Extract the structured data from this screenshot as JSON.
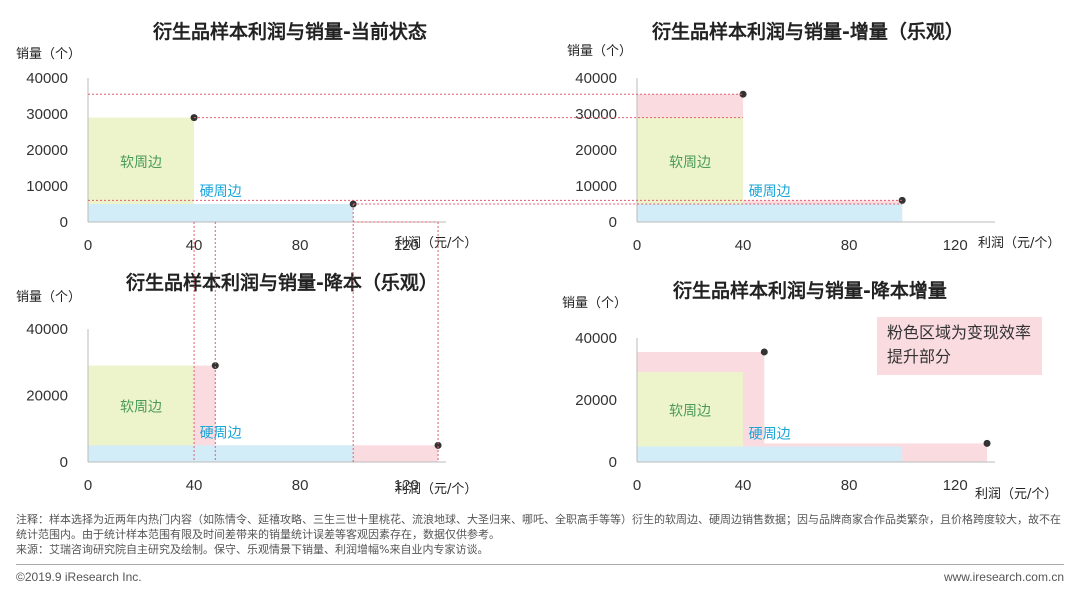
{
  "chart_data": [
    {
      "type": "area",
      "title": "衍生品样本利润与销量-当前状态",
      "ylabel": "销量（个）",
      "xlabel": "利润（元/个）",
      "x_ticks": [
        "0",
        "40",
        "80",
        "120"
      ],
      "y_ticks": [
        "0",
        "10000",
        "20000",
        "30000",
        "40000"
      ],
      "xlim": [
        0,
        135
      ],
      "ylim": [
        0,
        40000
      ],
      "series": [
        {
          "name": "软周边",
          "profit": 40,
          "volume": 29000
        },
        {
          "name": "硬周边",
          "profit": 100,
          "volume": 5000
        }
      ],
      "points": [
        {
          "profit": 40,
          "volume": 29000
        },
        {
          "profit": 100,
          "volume": 5000
        }
      ]
    },
    {
      "type": "area",
      "title": "衍生品样本利润与销量-增量（乐观）",
      "ylabel": "销量（个）",
      "xlabel": "利润（元/个）",
      "x_ticks": [
        "0",
        "40",
        "80",
        "120"
      ],
      "y_ticks": [
        "0",
        "10000",
        "20000",
        "30000",
        "40000"
      ],
      "xlim": [
        0,
        135
      ],
      "ylim": [
        0,
        40000
      ],
      "series": [
        {
          "name": "软周边",
          "profit": 40,
          "volume": 29000
        },
        {
          "name": "硬周边",
          "profit": 100,
          "volume": 5000
        }
      ],
      "increase_region": [
        {
          "profit": 40,
          "volume": 35500
        },
        {
          "profit": 100,
          "volume": 6000
        }
      ],
      "points": [
        {
          "profit": 40,
          "volume": 35500
        },
        {
          "profit": 100,
          "volume": 6000
        }
      ]
    },
    {
      "type": "area",
      "title": "衍生品样本利润与销量-降本（乐观）",
      "ylabel": "销量（个）",
      "xlabel": "利润（元/个）",
      "x_ticks": [
        "0",
        "40",
        "80",
        "120"
      ],
      "y_ticks": [
        "0",
        "20000",
        "40000"
      ],
      "xlim": [
        0,
        135
      ],
      "ylim": [
        0,
        40000
      ],
      "series": [
        {
          "name": "软周边",
          "profit": 40,
          "volume": 29000
        },
        {
          "name": "硬周边",
          "profit": 100,
          "volume": 5000
        }
      ],
      "increase_region": [
        {
          "profit": 48,
          "volume": 29000
        },
        {
          "profit": 132,
          "volume": 5000
        }
      ],
      "points": [
        {
          "profit": 48,
          "volume": 29000
        },
        {
          "profit": 132,
          "volume": 5000
        }
      ]
    },
    {
      "type": "area",
      "title": "衍生品样本利润与销量-降本增量",
      "ylabel": "销量（个）",
      "xlabel": "利润（元/个）",
      "x_ticks": [
        "0",
        "40",
        "80",
        "120"
      ],
      "y_ticks": [
        "0",
        "20000",
        "40000"
      ],
      "xlim": [
        0,
        135
      ],
      "ylim": [
        0,
        40000
      ],
      "series": [
        {
          "name": "软周边",
          "profit": 40,
          "volume": 29000
        },
        {
          "name": "硬周边",
          "profit": 100,
          "volume": 5000
        }
      ],
      "increase_region": [
        {
          "profit": 48,
          "volume": 35500
        },
        {
          "profit": 132,
          "volume": 6000
        }
      ],
      "points": [
        {
          "profit": 48,
          "volume": 35500
        },
        {
          "profit": 132,
          "volume": 6000
        }
      ]
    }
  ],
  "callout": "粉色区域为变现效率提升部分",
  "footer": {
    "note": "注释：样本选择为近两年内热门内容（如陈情令、延禧攻略、三生三世十里桃花、流浪地球、大圣归来、哪吒、全职高手等等）衍生的软周边、硬周边销售数据；因与品牌商家合作品类繁杂，且价格跨度较大，故不在统计范围内。由于统计样本范围有限及时间差带来的销量统计误差等客观因素存在，数据仅供参考。",
    "source": "来源：艾瑞咨询研究院自主研究及绘制。保守、乐观情景下销量、利润增幅%来自业内专家访谈。",
    "copyright": "©2019.9 iResearch Inc.",
    "website": "www.iresearch.com.cn"
  },
  "colors": {
    "soft": "#edf4cc",
    "hard": "#d2edf8",
    "increase": "#f9dbe0",
    "guide": "#e06070",
    "axis": "#bbbbbb",
    "dot": "#333333",
    "soft_text": "#4a9a56",
    "hard_text": "#1aa5d8"
  }
}
